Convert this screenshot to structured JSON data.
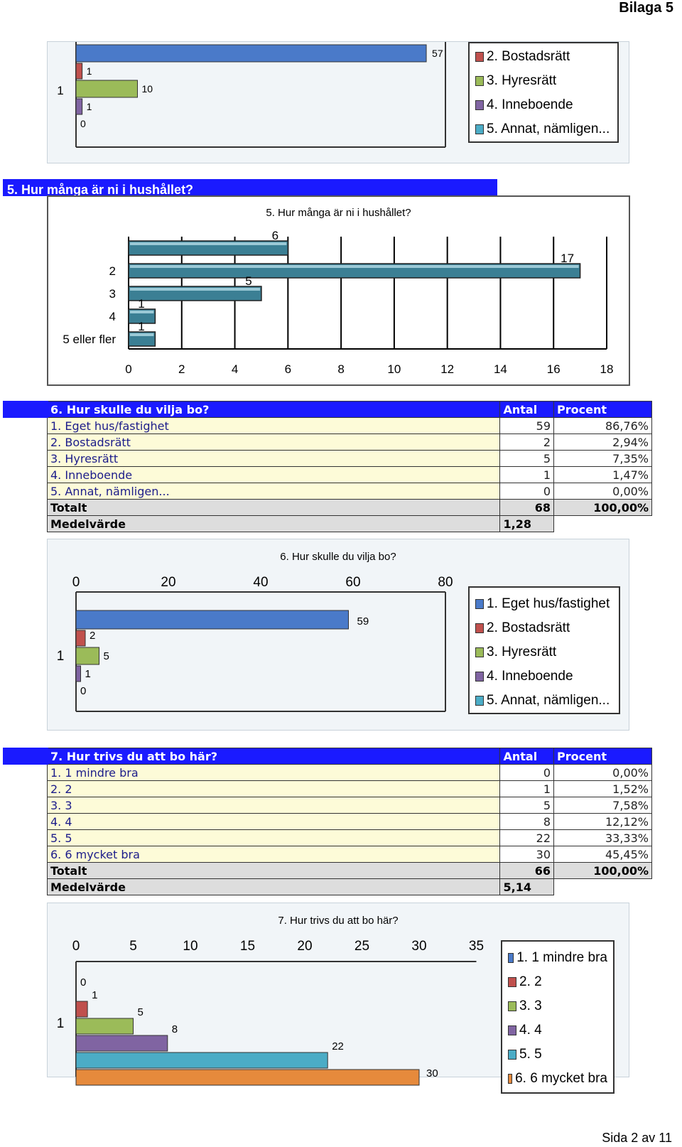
{
  "page": {
    "bilaga": "Bilaga 5",
    "footer": "Sida 2 av 11"
  },
  "q4_tail": {
    "category": "1",
    "legend": [
      "2. Bostadsrätt",
      "3. Hyresrätt",
      "4. Inneboende",
      "5. Annat, nämligen..."
    ],
    "colors": [
      "#4a7ac9",
      "#c0504d",
      "#9bbb59",
      "#8064a2",
      "#4bacc6"
    ],
    "chart_data": {
      "type": "bar",
      "categories": [
        "1"
      ],
      "series": [
        {
          "name": "",
          "values": [
            57
          ]
        },
        {
          "name": "2. Bostadsrätt",
          "values": [
            1
          ]
        },
        {
          "name": "3. Hyresrätt",
          "values": [
            10
          ]
        },
        {
          "name": "4. Inneboende",
          "values": [
            1
          ]
        },
        {
          "name": "5. Annat, nämligen...",
          "values": [
            0
          ]
        }
      ]
    }
  },
  "q5": {
    "header": "5. Hur många är ni i hushållet?",
    "chart_data": {
      "type": "bar",
      "title": "5. Hur många är ni i hushållet?",
      "categories": [
        "",
        "2",
        "3",
        "4",
        "5 eller fler"
      ],
      "values": [
        6,
        17,
        5,
        1,
        1
      ],
      "xlim": [
        0,
        18
      ],
      "ticks": [
        0,
        2,
        4,
        6,
        8,
        10,
        12,
        14,
        16,
        18
      ],
      "color": "#3b7f94"
    }
  },
  "q6": {
    "header": "6. Hur skulle du vilja bo?",
    "col_antal": "Antal",
    "col_procent": "Procent",
    "rows": [
      {
        "label": "1. Eget hus/fastighet",
        "antal": "59",
        "procent": "86,76%"
      },
      {
        "label": "2. Bostadsrätt",
        "antal": "2",
        "procent": "2,94%"
      },
      {
        "label": "3. Hyresrätt",
        "antal": "5",
        "procent": "7,35%"
      },
      {
        "label": "4. Inneboende",
        "antal": "1",
        "procent": "1,47%"
      },
      {
        "label": "5. Annat, nämligen...",
        "antal": "0",
        "procent": "0,00%"
      }
    ],
    "total_label": "Totalt",
    "total_antal": "68",
    "total_procent": "100,00%",
    "mean_label": "Medelvärde",
    "mean_value": "1,28",
    "legend": [
      "1. Eget hus/fastighet",
      "2. Bostadsrätt",
      "3. Hyresrätt",
      "4. Inneboende",
      "5. Annat, nämligen..."
    ],
    "colors": [
      "#4a7ac9",
      "#c0504d",
      "#9bbb59",
      "#8064a2",
      "#4bacc6"
    ],
    "chart_data": {
      "type": "bar",
      "title": "6. Hur skulle du vilja bo?",
      "categories": [
        "1"
      ],
      "series": [
        {
          "name": "1. Eget hus/fastighet",
          "values": [
            59
          ]
        },
        {
          "name": "2. Bostadsrätt",
          "values": [
            2
          ]
        },
        {
          "name": "3. Hyresrätt",
          "values": [
            5
          ]
        },
        {
          "name": "4. Inneboende",
          "values": [
            1
          ]
        },
        {
          "name": "5. Annat, nämligen...",
          "values": [
            0
          ]
        }
      ],
      "xlim": [
        0,
        80
      ],
      "ticks": [
        0,
        20,
        40,
        60,
        80
      ]
    }
  },
  "q7": {
    "header": "7. Hur trivs du att bo här?",
    "col_antal": "Antal",
    "col_procent": "Procent",
    "rows": [
      {
        "label": "1. 1 mindre bra",
        "antal": "0",
        "procent": "0,00%"
      },
      {
        "label": "2. 2",
        "antal": "1",
        "procent": "1,52%"
      },
      {
        "label": "3. 3",
        "antal": "5",
        "procent": "7,58%"
      },
      {
        "label": "4. 4",
        "antal": "8",
        "procent": "12,12%"
      },
      {
        "label": "5. 5",
        "antal": "22",
        "procent": "33,33%"
      },
      {
        "label": "6. 6 mycket bra",
        "antal": "30",
        "procent": "45,45%"
      }
    ],
    "total_label": "Totalt",
    "total_antal": "66",
    "total_procent": "100,00%",
    "mean_label": "Medelvärde",
    "mean_value": "5,14",
    "legend": [
      "1. 1 mindre bra",
      "2. 2",
      "3. 3",
      "4. 4",
      "5. 5",
      "6. 6 mycket bra"
    ],
    "colors": [
      "#4a7ac9",
      "#c0504d",
      "#9bbb59",
      "#8064a2",
      "#4bacc6",
      "#e68a3c"
    ],
    "chart_data": {
      "type": "bar",
      "title": "7. Hur trivs du att bo här?",
      "categories": [
        "1"
      ],
      "series": [
        {
          "name": "1. 1 mindre bra",
          "values": [
            0
          ]
        },
        {
          "name": "2. 2",
          "values": [
            1
          ]
        },
        {
          "name": "3. 3",
          "values": [
            5
          ]
        },
        {
          "name": "4. 4",
          "values": [
            8
          ]
        },
        {
          "name": "5. 5",
          "values": [
            22
          ]
        },
        {
          "name": "6. 6 mycket bra",
          "values": [
            30
          ]
        }
      ],
      "xlim": [
        0,
        35
      ],
      "ticks": [
        0,
        5,
        10,
        15,
        20,
        25,
        30,
        35
      ]
    }
  }
}
